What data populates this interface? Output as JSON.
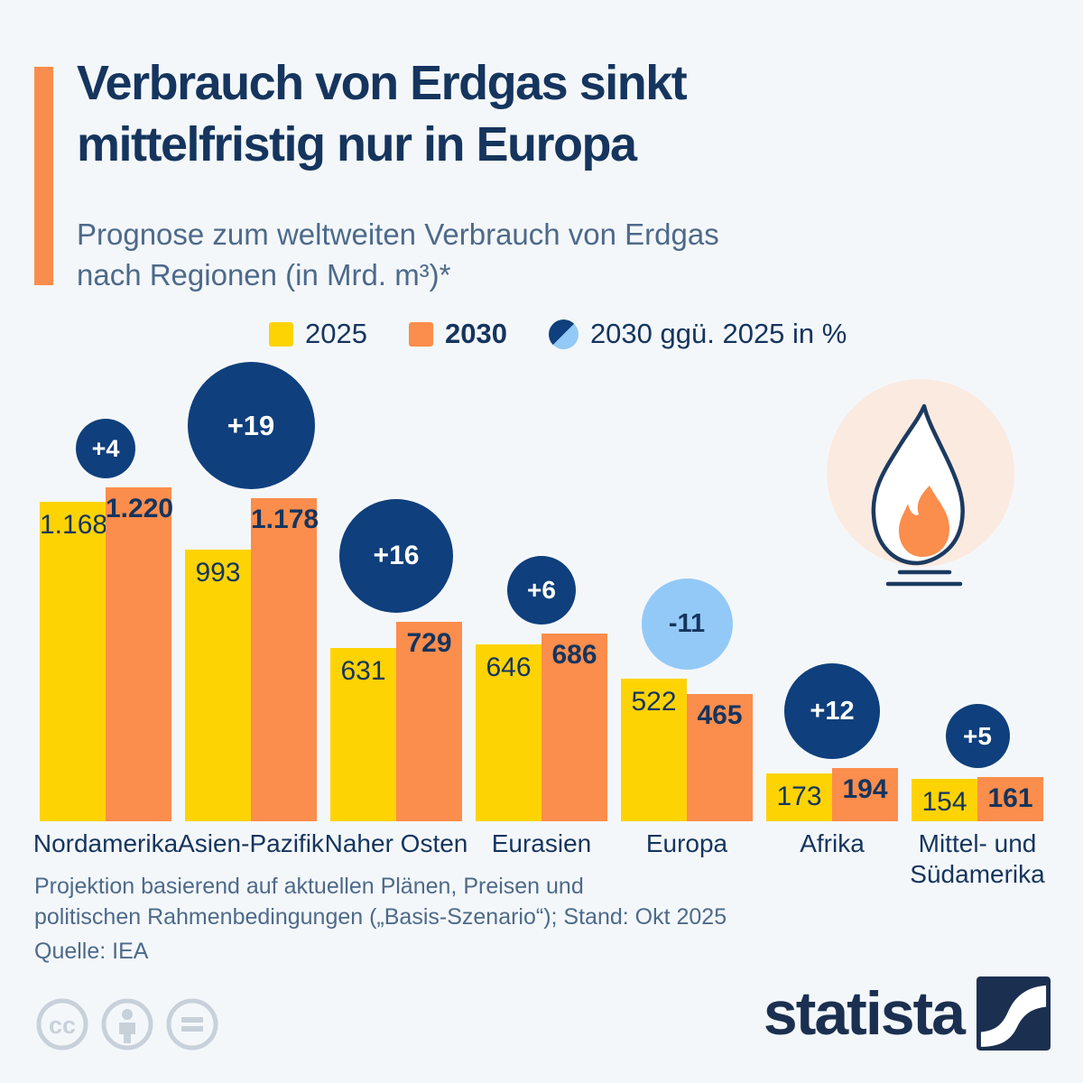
{
  "header": {
    "title": "Verbrauch von Erdgas sinkt\nmittelfristig nur in Europa",
    "subtitle": "Prognose zum weltweiten Verbrauch von Erdgas\nnach Regionen (in Mrd. m³)*"
  },
  "legend": {
    "items": [
      {
        "label": "2025",
        "swatch": "yellow-square"
      },
      {
        "label": "2030",
        "swatch": "orange-square"
      },
      {
        "label": "2030 ggü. 2025 in %",
        "swatch": "split-circle"
      }
    ]
  },
  "chart_data": {
    "type": "bar",
    "categories": [
      "Nordamerika",
      "Asien-Pazifik",
      "Naher Osten",
      "Eurasien",
      "Europa",
      "Afrika",
      "Mittel- und Südamerika"
    ],
    "series": [
      {
        "name": "2025",
        "values": [
          1168,
          993,
          631,
          646,
          522,
          173,
          154
        ],
        "labels": [
          "1.168",
          "993",
          "631",
          "646",
          "522",
          "173",
          "154"
        ]
      },
      {
        "name": "2030",
        "values": [
          1220,
          1178,
          729,
          686,
          465,
          194,
          161
        ],
        "labels": [
          "1.220",
          "1.178",
          "729",
          "686",
          "465",
          "194",
          "161"
        ]
      }
    ],
    "change_pct": [
      4,
      19,
      16,
      6,
      -11,
      12,
      5
    ],
    "change_labels": [
      "+4",
      "+19",
      "+16",
      "+6",
      "-11",
      "+12",
      "+5"
    ],
    "title": "Prognose zum weltweiten Verbrauch von Erdgas nach Regionen (in Mrd. m³)",
    "xlabel": "",
    "ylabel": "Mrd. m³",
    "ylim": [
      0,
      1680
    ],
    "grid": false,
    "legend_position": "top",
    "bubble_note": "Kreisgröße proportional zur prozentualen Veränderung; negativ = hellblau"
  },
  "footer": {
    "note": "Projektion basierend auf aktuellen Plänen, Preisen und\npolitischen Rahmenbedingungen („Basis-Szenario“); Stand: Okt 2025",
    "source": "Quelle: IEA"
  },
  "branding": {
    "logo_text": "statista"
  },
  "icons": [
    "cc-icon",
    "attribution-person-icon",
    "no-derivatives-equals-icon",
    "gas-flame-icon"
  ],
  "colors": {
    "background": "#f4f7fa",
    "title_navy": "#15355e",
    "subtitle_slate": "#4d6a8a",
    "bar_2025_yellow": "#fed304",
    "bar_2030_orange": "#fb8d4d",
    "increase_circle_navy": "#0f3f7c",
    "decrease_circle_lightblue": "#93c9f7",
    "accent_bar_orange": "#f98d4d",
    "flame_bg_peach": "#fbeae0",
    "cc_gray": "#c8d1da",
    "logo_navy": "#1b3050"
  }
}
